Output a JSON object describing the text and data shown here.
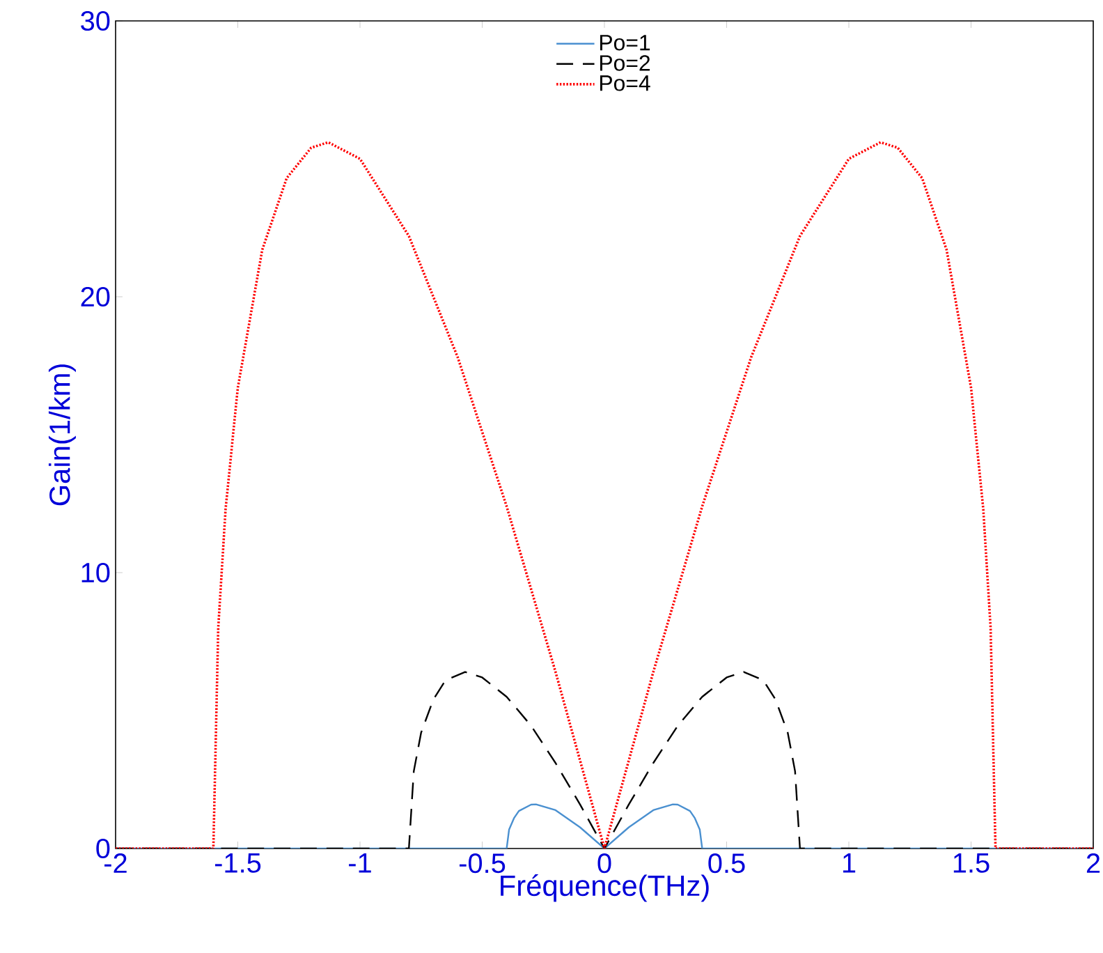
{
  "chart_data": {
    "type": "line",
    "xlabel": "Fréquence(THz)",
    "ylabel": "Gain(1/km)",
    "xlim": [
      -2,
      2
    ],
    "ylim": [
      0,
      30
    ],
    "xticks": [
      -2,
      -1.5,
      -1,
      -0.5,
      0,
      0.5,
      1,
      1.5,
      2
    ],
    "yticks": [
      0,
      10,
      20,
      30
    ],
    "grid": false,
    "legend": "top",
    "marker": "none",
    "series": [
      {
        "name": "Po=1",
        "color": "#4a90d0",
        "line_style": "solid",
        "x": [
          -2,
          -0.4,
          -0.4,
          -0.39,
          -0.37,
          -0.35,
          -0.3,
          -0.28,
          -0.2,
          -0.1,
          0,
          0.1,
          0.2,
          0.28,
          0.3,
          0.35,
          0.37,
          0.39,
          0.4,
          0.4,
          2
        ],
        "values": [
          0,
          0,
          0,
          0.69,
          1.1,
          1.36,
          1.59,
          1.6,
          1.39,
          0.77,
          0,
          0.77,
          1.39,
          1.6,
          1.59,
          1.36,
          1.1,
          0.69,
          0,
          0,
          0
        ]
      },
      {
        "name": "Po=2",
        "color": "#000000",
        "line_style": "dashed",
        "x": [
          -2,
          -0.8,
          -0.8,
          -0.78,
          -0.75,
          -0.7,
          -0.65,
          -0.57,
          -0.5,
          -0.4,
          -0.3,
          -0.2,
          -0.1,
          0,
          0.1,
          0.2,
          0.3,
          0.4,
          0.5,
          0.57,
          0.65,
          0.7,
          0.75,
          0.78,
          0.8,
          0.8,
          2
        ],
        "values": [
          0,
          0,
          0,
          2.8,
          4.2,
          5.4,
          6.1,
          6.4,
          6.2,
          5.5,
          4.45,
          3.1,
          1.6,
          0,
          1.6,
          3.1,
          4.45,
          5.5,
          6.2,
          6.4,
          6.1,
          5.4,
          4.2,
          2.8,
          0,
          0,
          0
        ]
      },
      {
        "name": "Po=4",
        "color": "#ff0000",
        "line_style": "dotted",
        "x": [
          -2,
          -1.6,
          -1.6,
          -1.58,
          -1.55,
          -1.5,
          -1.4,
          -1.3,
          -1.2,
          -1.13,
          -1,
          -0.8,
          -0.6,
          -0.4,
          -0.2,
          0,
          0.2,
          0.4,
          0.6,
          0.8,
          1,
          1.13,
          1.2,
          1.3,
          1.4,
          1.5,
          1.55,
          1.58,
          1.6,
          1.6,
          2
        ],
        "values": [
          0,
          0,
          0,
          8,
          12.3,
          16.7,
          21.7,
          24.3,
          25.4,
          25.6,
          25,
          22.2,
          17.8,
          12.4,
          6.4,
          0,
          6.4,
          12.4,
          17.8,
          22.2,
          25,
          25.6,
          25.4,
          24.3,
          21.7,
          16.7,
          12.3,
          8,
          0,
          0,
          0
        ]
      }
    ]
  }
}
